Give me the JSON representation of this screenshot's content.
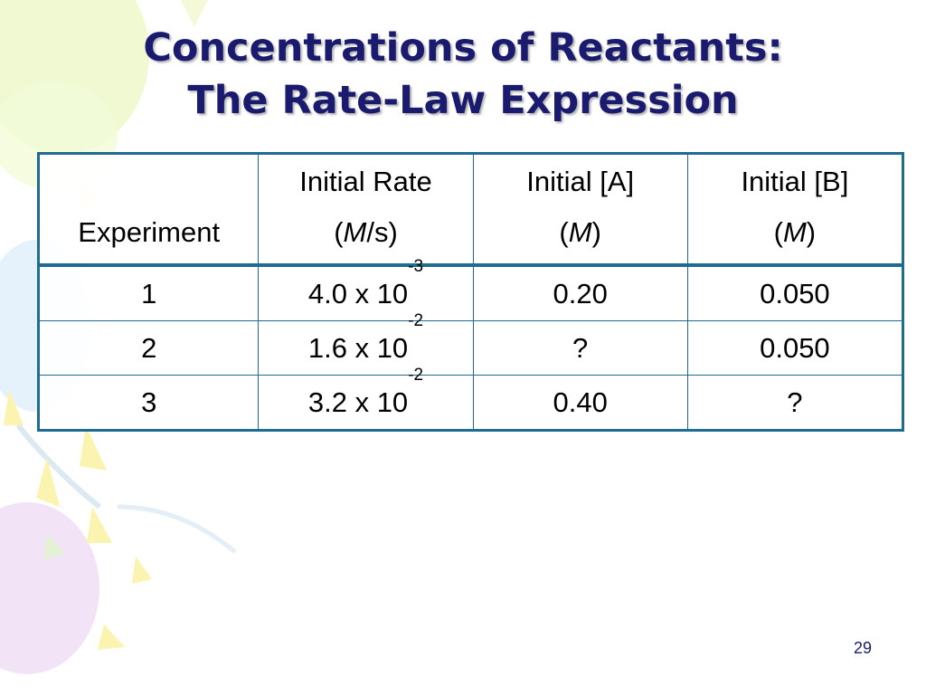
{
  "slide": {
    "title_line1": "Concentrations of Reactants:",
    "title_line2": "The Rate-Law Expression",
    "page_number": "29"
  },
  "table": {
    "headers": [
      {
        "line1": "",
        "line2": "Experiment"
      },
      {
        "line1": "Initial Rate",
        "open": "(",
        "unit_italic": "M",
        "unit_rest": "/s)"
      },
      {
        "line1": "Initial [A]",
        "open": "(",
        "unit_italic": "M",
        "unit_rest": ")"
      },
      {
        "line1": "Initial [B]",
        "open": "(",
        "unit_italic": "M",
        "unit_rest": ")"
      }
    ],
    "rows": [
      {
        "experiment": "1",
        "rate_base": "4.0 x 10",
        "rate_exp": "-3",
        "a": "0.20",
        "b": "0.050"
      },
      {
        "experiment": "2",
        "rate_base": "1.6 x 10",
        "rate_exp": "-2",
        "a": "?",
        "b": "0.050"
      },
      {
        "experiment": "3",
        "rate_base": "3.2 x 10",
        "rate_exp": "-2",
        "a": "0.40",
        "b": "?"
      }
    ]
  },
  "colors": {
    "title": "#1a1a6e",
    "table_border": "#1f6b91"
  }
}
